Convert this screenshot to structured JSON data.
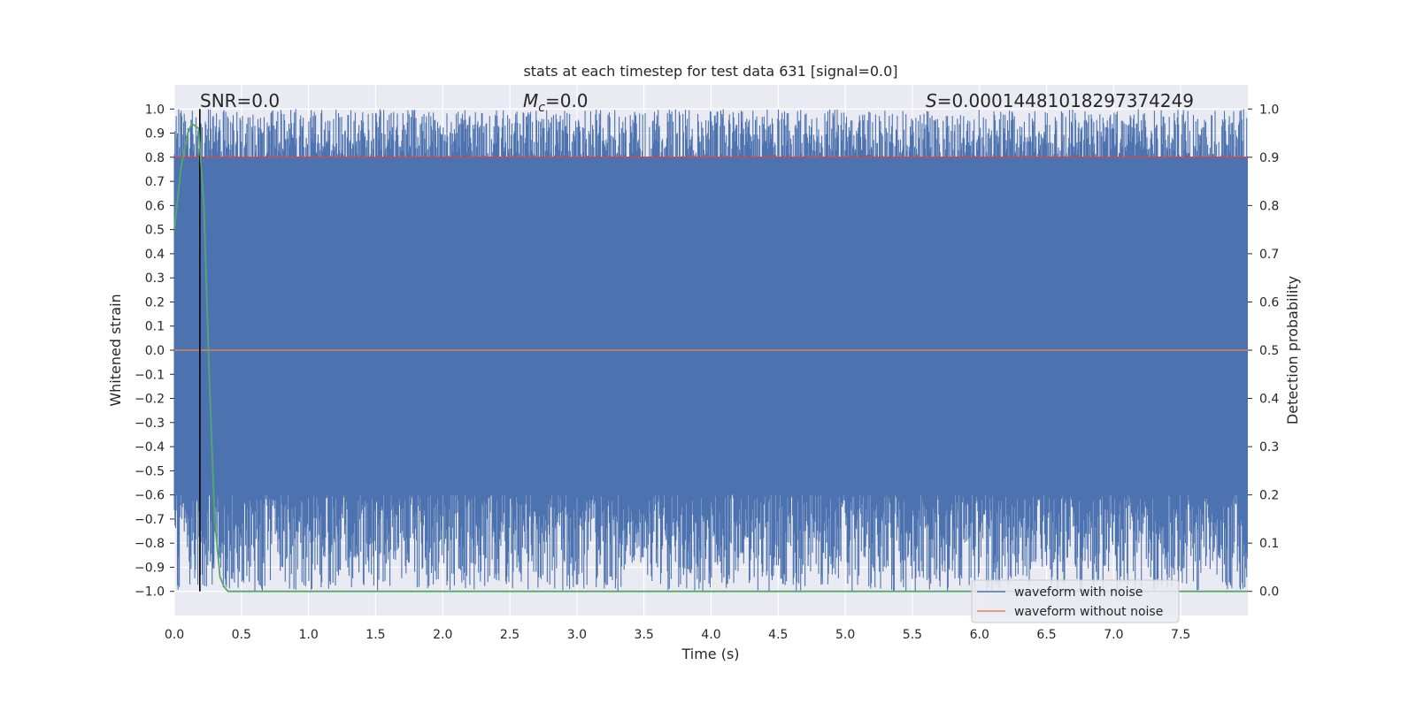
{
  "chart_data": {
    "type": "line",
    "title": "stats at each timestep for test data 631 [signal=0.0]",
    "xlabel": "Time (s)",
    "ylabel": "Whitened strain",
    "ylabel_right": "Detection probability",
    "xlim": [
      0.0,
      8.0
    ],
    "ylim": [
      -1.1,
      1.1
    ],
    "ylim_right": [
      -0.05,
      1.05
    ],
    "x_ticks": [
      "0.0",
      "0.5",
      "1.0",
      "1.5",
      "2.0",
      "2.5",
      "3.0",
      "3.5",
      "4.0",
      "4.5",
      "5.0",
      "5.5",
      "6.0",
      "6.5",
      "7.0",
      "7.5"
    ],
    "y_ticks": [
      "1.0",
      "0.9",
      "0.8",
      "0.7",
      "0.6",
      "0.5",
      "0.4",
      "0.3",
      "0.2",
      "0.1",
      "0.0",
      "−0.1",
      "−0.2",
      "−0.3",
      "−0.4",
      "−0.5",
      "−0.6",
      "−0.7",
      "−0.8",
      "−0.9",
      "−1.0"
    ],
    "y_right_ticks": [
      "1.0",
      "0.9",
      "0.8",
      "0.7",
      "0.6",
      "0.5",
      "0.4",
      "0.3",
      "0.2",
      "0.1",
      "0.0"
    ],
    "grid": true,
    "annotations": {
      "snr": "SNR=0.0",
      "mc_symbol": "M",
      "mc_sub": "c",
      "mc_value": "=0.0",
      "s_symbol": "S",
      "s_value": "=0.00014481018297374249"
    },
    "vertical_marker_x": 0.19,
    "threshold_right": 0.9,
    "series": [
      {
        "name": "waveform with noise",
        "color": "#4c72b0",
        "style": "dense noise filling [-1, 1]"
      },
      {
        "name": "waveform without noise",
        "color": "#dd8452",
        "x": [
          0.0,
          8.0
        ],
        "y": [
          0.0,
          0.0
        ]
      },
      {
        "name": "",
        "color": "#55a868",
        "axis": "right",
        "x": [
          0.0,
          0.05,
          0.1,
          0.13,
          0.18,
          0.22,
          0.26,
          0.3,
          0.34,
          0.37,
          0.4,
          8.0
        ],
        "y": [
          0.75,
          0.88,
          0.95,
          0.97,
          0.96,
          0.8,
          0.45,
          0.15,
          0.03,
          0.01,
          0.0,
          0.0
        ]
      }
    ],
    "legend": {
      "placement": "lower-right",
      "entries": [
        "waveform with noise",
        "waveform without noise"
      ]
    },
    "colors": {
      "plot_bg": "#eaeaf2",
      "grid": "#ffffff",
      "noise": "#4c72b0",
      "clean": "#dd8452",
      "prob": "#55a868",
      "threshold": "#c44e52",
      "marker": "#000000"
    }
  }
}
